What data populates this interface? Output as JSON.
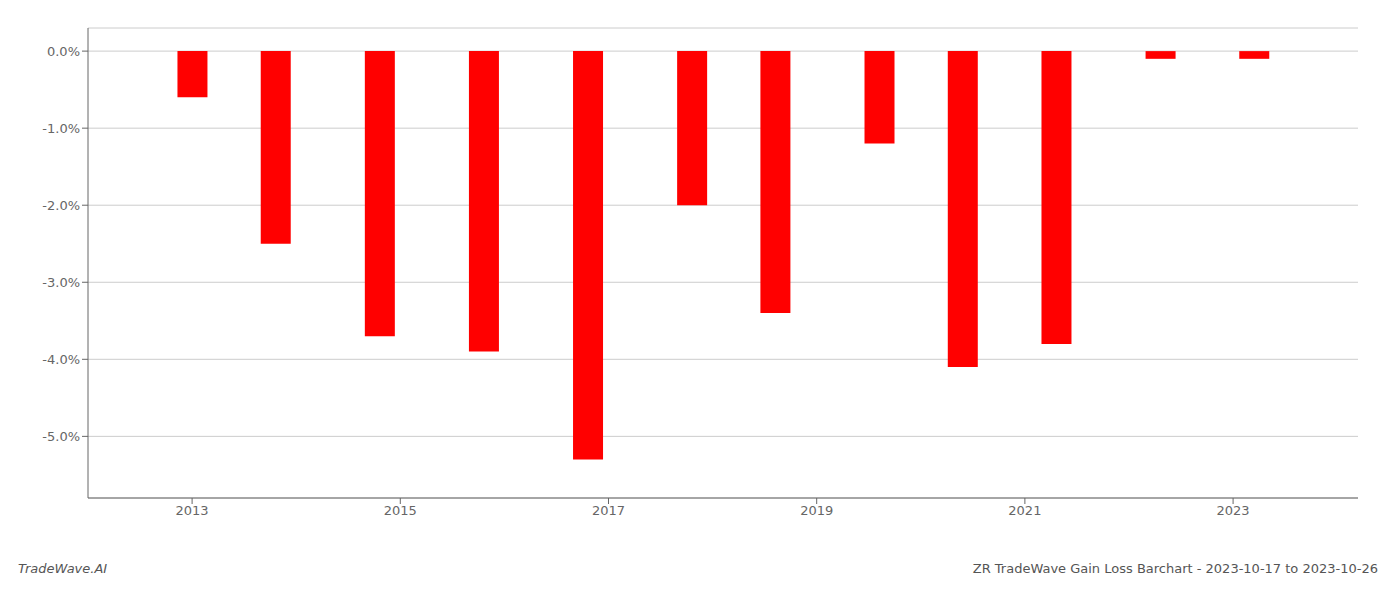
{
  "chart_data": {
    "type": "bar",
    "title": "ZR TradeWave Gain Loss Barchart - 2023-10-17 to 2023-10-26",
    "annotations": [
      "TradeWave.AI"
    ],
    "x": [
      2013,
      2013.8,
      2014.8,
      2015.8,
      2016.8,
      2017.8,
      2018.6,
      2019.6,
      2020.4,
      2021.3,
      2022.3,
      2023.2
    ],
    "values": [
      -0.006,
      -0.025,
      -0.037,
      -0.039,
      -0.053,
      -0.02,
      -0.034,
      -0.012,
      -0.041,
      -0.038,
      -0.001,
      -0.001
    ],
    "color": "#ff0000",
    "xlim": [
      2012.0,
      2024.2
    ],
    "xticks": [
      2013,
      2015,
      2017,
      2019,
      2021,
      2023
    ],
    "ylim": [
      -0.058,
      0.003
    ],
    "yticks": [
      {
        "value": 0.0,
        "label": "0.0%"
      },
      {
        "value": -0.01,
        "label": "-1.0%"
      },
      {
        "value": -0.02,
        "label": "-2.0%"
      },
      {
        "value": -0.03,
        "label": "-3.0%"
      },
      {
        "value": -0.04,
        "label": "-4.0%"
      },
      {
        "value": -0.05,
        "label": "-5.0%"
      }
    ],
    "grid": true
  }
}
